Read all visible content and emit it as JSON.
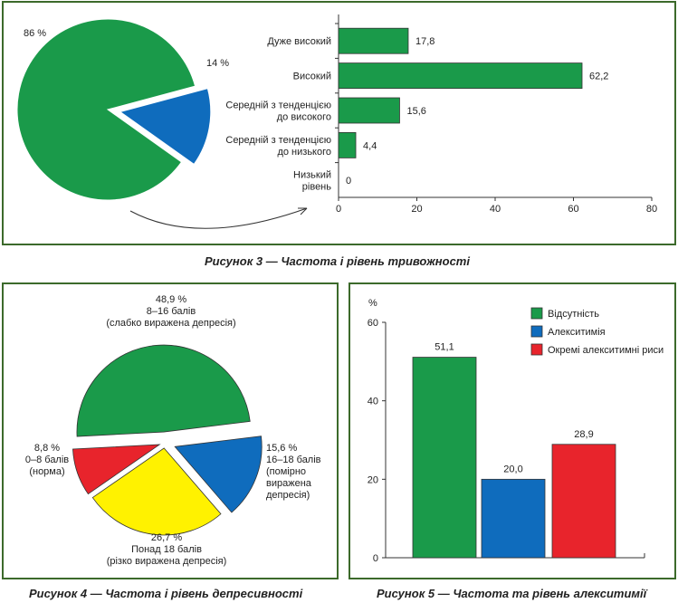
{
  "colors": {
    "green": "#1a9a4a",
    "blue": "#0f6cbd",
    "yellow": "#fff200",
    "red": "#e8242c",
    "frame": "#3c6a2b"
  },
  "chart_data": [
    {
      "id": "fig3-pie",
      "type": "pie",
      "slices": [
        {
          "label": "86 %",
          "value": 86,
          "color": "#1a9a4a"
        },
        {
          "label": "14 %",
          "value": 14,
          "color": "#0f6cbd"
        }
      ]
    },
    {
      "id": "fig3-bar",
      "type": "bar",
      "orientation": "horizontal",
      "categories": [
        "Дуже високий",
        "Високий",
        "Середній з тенденцією до високого",
        "Середній з тенденцією до низького",
        "Низький рівень"
      ],
      "category_lines": [
        [
          "Дуже високий"
        ],
        [
          "Високий"
        ],
        [
          "Середній з тенденцією",
          "до високого"
        ],
        [
          "Середній з тенденцією",
          "до низького"
        ],
        [
          "Низький",
          "рівень"
        ]
      ],
      "values": [
        17.8,
        62.2,
        15.6,
        4.4,
        0
      ],
      "value_labels": [
        "17,8",
        "62,2",
        "15,6",
        "4,4",
        "0"
      ],
      "xlim": [
        0,
        80
      ],
      "xticks": [
        0,
        20,
        40,
        60,
        80
      ],
      "color": "#1a9a4a",
      "grid": false
    },
    {
      "id": "fig4-pie",
      "type": "pie",
      "slices": [
        {
          "value": 48.9,
          "color": "#1a9a4a",
          "lines": [
            "48,9 %",
            "8–16 балів",
            "(слабко виражена депресія)"
          ]
        },
        {
          "value": 15.6,
          "color": "#0f6cbd",
          "lines": [
            "15,6 %",
            "16–18 балів",
            "(помірно",
            "виражена",
            "депресія)"
          ]
        },
        {
          "value": 26.7,
          "color": "#fff200",
          "lines": [
            "26,7 %",
            "Понад 18 балів",
            "(різко виражена депресія)"
          ]
        },
        {
          "value": 8.8,
          "color": "#e8242c",
          "lines": [
            "8,8 %",
            "0–8 балів",
            "(норма)"
          ]
        }
      ]
    },
    {
      "id": "fig5-bar",
      "type": "bar",
      "series": [
        {
          "name": "Відсутність",
          "values": [
            51.1
          ],
          "label": "51,1",
          "color": "#1a9a4a"
        },
        {
          "name": "Алекситимія",
          "values": [
            20.0
          ],
          "label": "20,0",
          "color": "#0f6cbd"
        },
        {
          "name": "Окремі алекситимні риси",
          "values": [
            28.9
          ],
          "label": "28,9",
          "color": "#e8242c"
        }
      ],
      "ylabel": "%",
      "ylim": [
        0,
        60
      ],
      "yticks": [
        0,
        20,
        40,
        60
      ],
      "legend": "top-right",
      "grid": false
    }
  ],
  "captions": {
    "fig3": "Рисунок 3 — Частота і рівень тривожності",
    "fig4": "Рисунок 4 — Частота і рівень депресивності",
    "fig5": "Рисунок 5 — Частота та рівень алекситимії"
  }
}
